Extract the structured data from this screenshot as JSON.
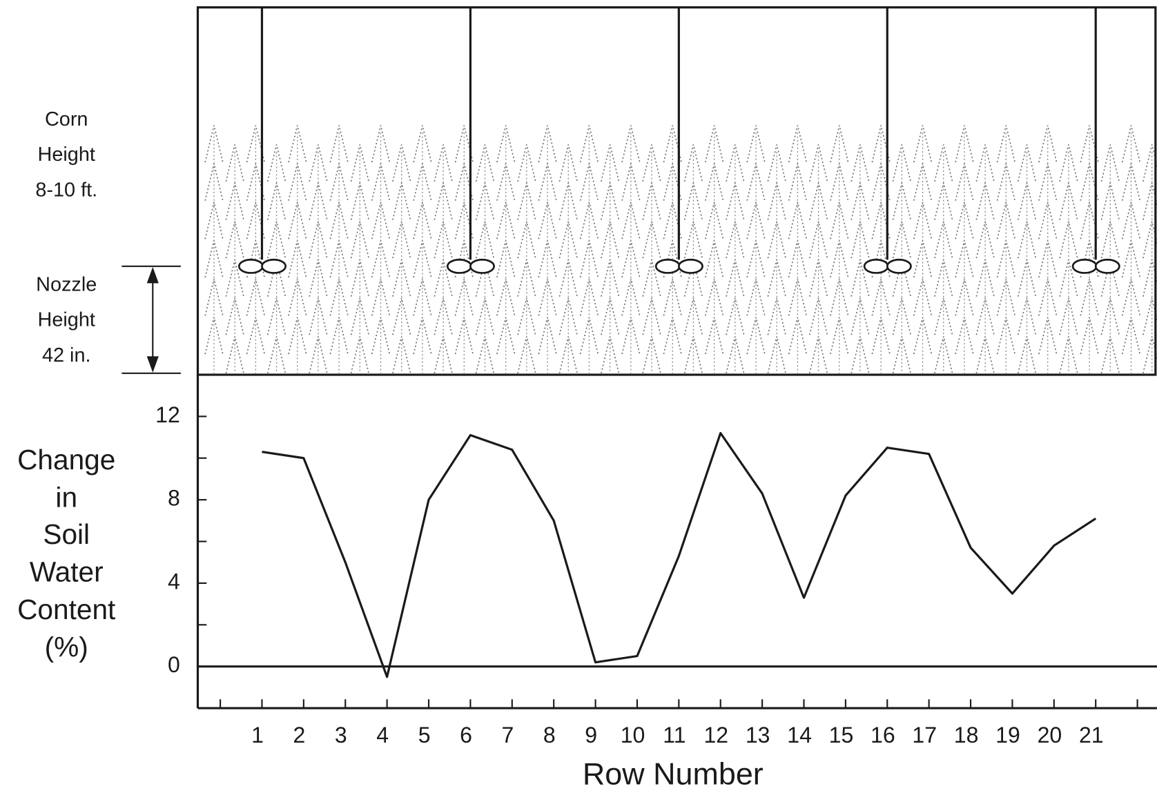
{
  "chart_data": {
    "type": "line",
    "corn_label": [
      "Corn",
      "Height",
      "8-10 ft."
    ],
    "nozzle_label": [
      "Nozzle",
      "Height",
      "42 in."
    ],
    "nozzle_rows": [
      1,
      6,
      11,
      16,
      21
    ],
    "ylabel": [
      "Change",
      "in",
      "Soil",
      "Water",
      "Content",
      "(%)"
    ],
    "xlabel": "Row Number",
    "x": [
      1,
      2,
      3,
      4,
      5,
      6,
      7,
      8,
      9,
      10,
      11,
      12,
      13,
      14,
      15,
      16,
      17,
      18,
      19,
      20,
      21
    ],
    "series": [
      {
        "color": "#1a1a1a",
        "values": [
          10.3,
          10.0,
          5.0,
          -0.5,
          8.0,
          11.1,
          10.4,
          7.0,
          0.2,
          0.5,
          5.3,
          11.2,
          8.3,
          3.3,
          8.2,
          10.5,
          10.2,
          5.7,
          3.5,
          5.8,
          7.1
        ]
      }
    ],
    "xlim": [
      -0.54,
      22.47
    ],
    "xticks": [
      1,
      2,
      3,
      4,
      5,
      6,
      7,
      8,
      9,
      10,
      11,
      12,
      13,
      14,
      15,
      16,
      17,
      18,
      19,
      20,
      21
    ],
    "xminorticks": [
      0,
      22
    ],
    "ylim": [
      -2,
      14
    ],
    "yticks": [
      0,
      4,
      8,
      12
    ],
    "yminorticks": [
      -2,
      2,
      6,
      10
    ],
    "zero_line": 0
  }
}
